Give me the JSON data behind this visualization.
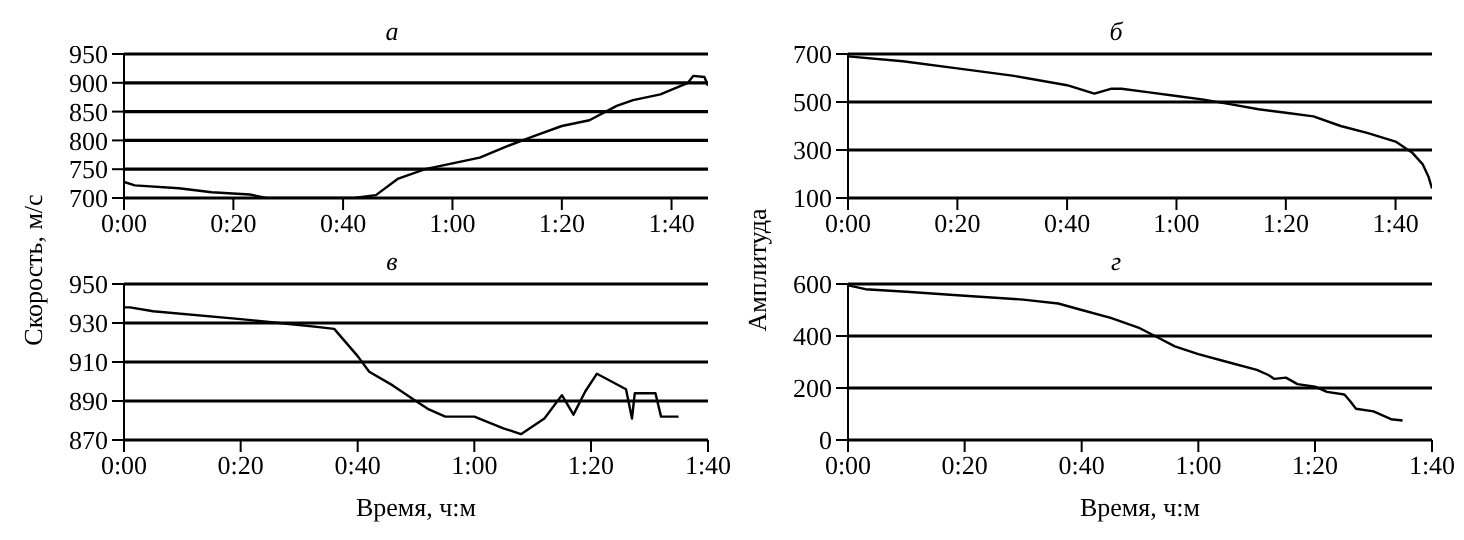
{
  "chart_data": [
    {
      "type": "line",
      "title": "а",
      "ylabel": "Скорость, м/с",
      "grid": "y",
      "marker": "none",
      "line_style": "solid",
      "x": [
        0,
        0.033,
        0.167,
        0.267,
        0.383,
        0.433,
        0.7,
        0.767,
        0.833,
        0.917,
        1,
        1.083,
        1.167,
        1.25,
        1.333,
        1.417,
        1.5,
        1.55,
        1.633,
        1.717,
        1.733,
        1.767,
        1.778
      ],
      "series": [
        {
          "color": "#000000",
          "values": [
            728,
            722,
            717,
            710,
            706,
            700,
            700,
            705,
            733,
            750,
            760,
            770,
            790,
            808,
            825,
            835,
            860,
            870,
            880,
            900,
            912,
            910,
            895
          ]
        }
      ],
      "xlim": [
        0,
        1.778
      ],
      "xticks": [
        {
          "value": 0,
          "label": "0:00"
        },
        {
          "value": 0.333,
          "label": "0:20"
        },
        {
          "value": 0.667,
          "label": "0:40"
        },
        {
          "value": 1,
          "label": "1:00"
        },
        {
          "value": 1.333,
          "label": "1:20"
        },
        {
          "value": 1.667,
          "label": "1:40"
        }
      ],
      "ylim": [
        700,
        950
      ],
      "yticks": [
        700,
        750,
        800,
        850,
        900,
        950
      ]
    },
    {
      "type": "line",
      "title": "б",
      "ylabel": "Амплитуда",
      "grid": "y",
      "marker": "none",
      "line_style": "solid",
      "x": [
        0,
        0.167,
        0.333,
        0.5,
        0.667,
        0.75,
        0.8,
        0.833,
        0.917,
        1,
        1.083,
        1.167,
        1.25,
        1.333,
        1.417,
        1.5,
        1.583,
        1.667,
        1.717,
        1.75,
        1.767,
        1.778
      ],
      "series": [
        {
          "color": "#000000",
          "values": [
            690,
            670,
            640,
            610,
            570,
            535,
            555,
            555,
            540,
            525,
            510,
            490,
            470,
            455,
            440,
            400,
            370,
            335,
            290,
            240,
            190,
            140
          ]
        }
      ],
      "xlim": [
        0,
        1.778
      ],
      "xticks": [
        {
          "value": 0,
          "label": "0:00"
        },
        {
          "value": 0.333,
          "label": "0:20"
        },
        {
          "value": 0.667,
          "label": "0:40"
        },
        {
          "value": 1,
          "label": "1:00"
        },
        {
          "value": 1.333,
          "label": "1:20"
        },
        {
          "value": 1.667,
          "label": "1:40"
        }
      ],
      "ylim": [
        100,
        700
      ],
      "yticks": [
        100,
        300,
        500,
        700
      ]
    },
    {
      "type": "line",
      "title": "в",
      "xlabel": "Время, ч:м",
      "grid": "y",
      "marker": "none",
      "line_style": "solid",
      "x": [
        0,
        0.017,
        0.083,
        0.333,
        0.5,
        0.55,
        0.6,
        0.667,
        0.7,
        0.767,
        0.833,
        0.867,
        0.917,
        1,
        1.083,
        1.133,
        1.2,
        1.25,
        1.283,
        1.317,
        1.35,
        1.433,
        1.45,
        1.458,
        1.517,
        1.533,
        1.583
      ],
      "series": [
        {
          "color": "#000000",
          "values": [
            938,
            938,
            936,
            932,
            929,
            928,
            927,
            913,
            905,
            898,
            890,
            886,
            882,
            882,
            876,
            873,
            881,
            893,
            883,
            895,
            904,
            896,
            881,
            894,
            894,
            882,
            882
          ]
        }
      ],
      "xlim": [
        0,
        1.667
      ],
      "xticks": [
        {
          "value": 0,
          "label": "0:00"
        },
        {
          "value": 0.333,
          "label": "0:20"
        },
        {
          "value": 0.667,
          "label": "0:40"
        },
        {
          "value": 1,
          "label": "1:00"
        },
        {
          "value": 1.333,
          "label": "1:20"
        },
        {
          "value": 1.667,
          "label": "1:40"
        }
      ],
      "ylim": [
        870,
        950
      ],
      "yticks": [
        870,
        890,
        910,
        930,
        950
      ]
    },
    {
      "type": "line",
      "title": "г",
      "xlabel": "Время, ч:м",
      "grid": "y",
      "marker": "none",
      "line_style": "solid",
      "x": [
        0,
        0.05,
        0.167,
        0.333,
        0.5,
        0.6,
        0.667,
        0.75,
        0.833,
        0.883,
        0.933,
        1,
        1.083,
        1.167,
        1.2,
        1.217,
        1.25,
        1.283,
        1.333,
        1.367,
        1.417,
        1.433,
        1.45,
        1.5,
        1.55,
        1.583
      ],
      "series": [
        {
          "color": "#000000",
          "values": [
            595,
            580,
            570,
            555,
            540,
            525,
            500,
            470,
            430,
            395,
            360,
            330,
            300,
            270,
            250,
            235,
            240,
            215,
            205,
            185,
            175,
            150,
            120,
            110,
            80,
            75
          ]
        }
      ],
      "xlim": [
        0,
        1.667
      ],
      "xticks": [
        {
          "value": 0,
          "label": "0:00"
        },
        {
          "value": 0.333,
          "label": "0:20"
        },
        {
          "value": 0.667,
          "label": "0:40"
        },
        {
          "value": 1,
          "label": "1:00"
        },
        {
          "value": 1.333,
          "label": "1:20"
        },
        {
          "value": 1.667,
          "label": "1:40"
        }
      ],
      "ylim": [
        0,
        600
      ],
      "yticks": [
        0,
        200,
        400,
        600
      ]
    }
  ]
}
